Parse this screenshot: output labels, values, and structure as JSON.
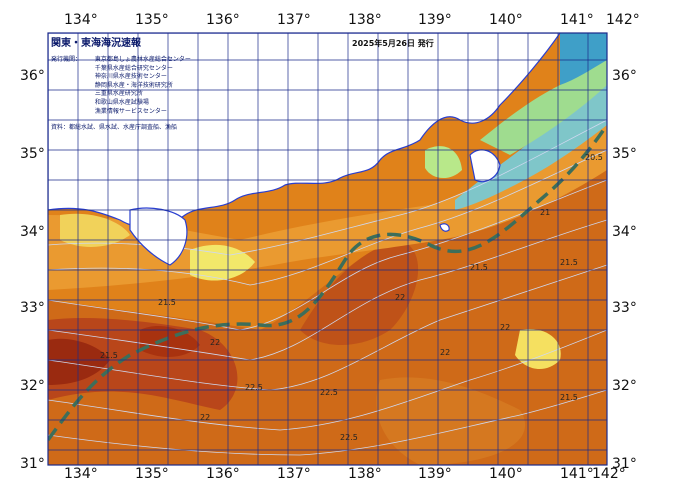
{
  "map": {
    "title": "関東・東海海況速報",
    "issued": "2025年5月26日 発行",
    "issuers_label": "発行機関：",
    "issuers": [
      "東京都島しょ農林水産総合センター",
      "千葉県水産総合研究センター",
      "神奈川県水産技術センター",
      "静岡県水産・海洋技術研究所",
      "三重県水産研究所",
      "和歌山県水産試験場",
      "漁業情報サービスセンター"
    ],
    "sources": "資料：都総水試、県水試、水産庁調査船、漁船",
    "lon_labels": [
      "134°",
      "135°",
      "136°",
      "137°",
      "138°",
      "139°",
      "140°",
      "141°",
      "142°"
    ],
    "lat_labels": [
      "31°",
      "32°",
      "33°",
      "34°",
      "35°",
      "36°"
    ],
    "contour_labels": [
      "21.5",
      "21.5",
      "22",
      "22.5",
      "22.5",
      "22",
      "21.5",
      "21",
      "20.5",
      "21.5",
      "22",
      "22",
      "22.5",
      "21.5",
      "22"
    ],
    "colors": {
      "land": "#ffffff",
      "grid": "#1a2a8a",
      "sst_cool": "#3f9fc8",
      "sst_mild": "#f2e86a",
      "sst_warm": "#e0821a",
      "sst_hot": "#b73c10",
      "contour": "#cfd8f0",
      "kuroshio_axis": "#3d6e5a"
    }
  }
}
